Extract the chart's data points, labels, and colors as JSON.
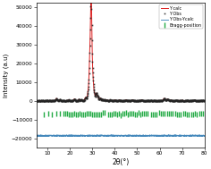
{
  "title": "",
  "xlabel": "2θ(°)",
  "ylabel": "Intensity (a.u)",
  "xlim": [
    5,
    80
  ],
  "ylim": [
    -25000,
    52000
  ],
  "yticks": [
    -20000,
    -10000,
    0,
    10000,
    20000,
    30000,
    40000,
    50000
  ],
  "xticks": [
    10,
    20,
    30,
    40,
    50,
    60,
    70,
    80
  ],
  "bg_color": "#ffffff",
  "obs_color": "#222222",
  "calc_color": "#dd2222",
  "diff_color": "#4488bb",
  "bragg_color": "#22aa44",
  "legend_entries": [
    "Y Obs",
    "Y calc",
    "Y Obs-Ycalc",
    "Bragg-position"
  ],
  "diff_baseline": -18500,
  "bragg_y": -7000
}
